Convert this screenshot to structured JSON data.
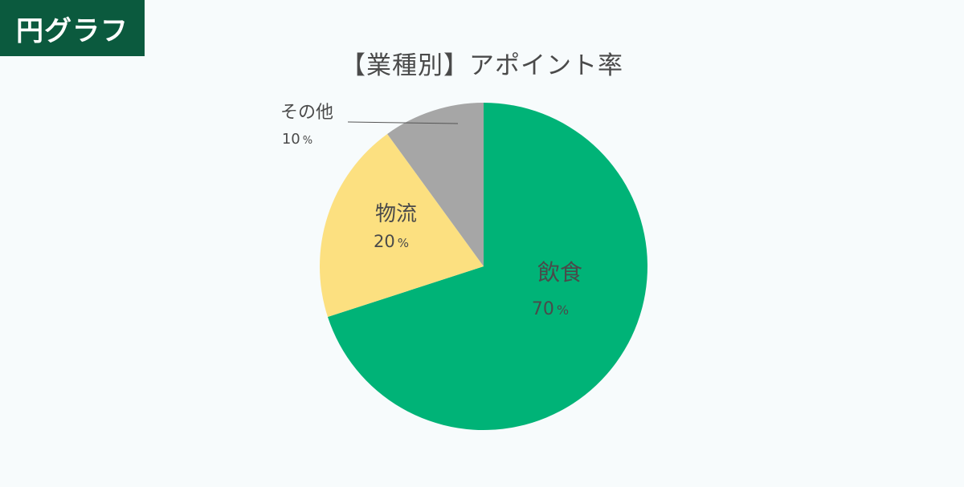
{
  "badge": {
    "label": "円グラフ"
  },
  "colors": {
    "badge_bg": "#0b5a3e",
    "background": "#f7fbfc"
  },
  "chart_data": {
    "type": "pie",
    "title": "【業種別】アポイント率",
    "slices": [
      {
        "label": "飲食",
        "value": 70,
        "value_label": "70",
        "unit": "%",
        "color": "#00b377"
      },
      {
        "label": "物流",
        "value": 20,
        "value_label": "20",
        "unit": "%",
        "color": "#fce080"
      },
      {
        "label": "その他",
        "value": 10,
        "value_label": "10",
        "unit": "%",
        "color": "#a6a6a6"
      }
    ],
    "legend": "none",
    "label_placement": "inside (その他: outside with leader line)"
  }
}
